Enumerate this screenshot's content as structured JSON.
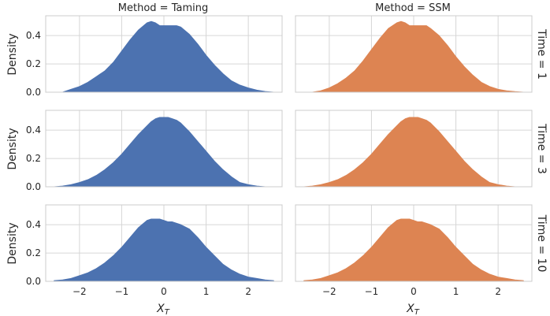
{
  "chart_data": {
    "type": "area",
    "subtype": "kde-facet-grid",
    "column_facet": "Method",
    "row_facet": "Time",
    "column_titles": [
      "Method = Taming",
      "Method = SSM"
    ],
    "row_titles": [
      "Time = 1",
      "Time = 3",
      "Time = 10"
    ],
    "ylabel": "Density",
    "xlabel": "X_T",
    "xticks": [
      -2,
      -1,
      0,
      1,
      2
    ],
    "xtick_labels": [
      "−2",
      "−1",
      "0",
      "1",
      "2"
    ],
    "yticks": [
      0.0,
      0.2,
      0.4
    ],
    "ytick_labels": [
      "0.0",
      "0.2",
      "0.4"
    ],
    "xlim": [
      -2.8,
      2.8
    ],
    "ylim": [
      0,
      0.54
    ],
    "grid": true,
    "colors": {
      "Taming": "#4c72b0",
      "SSM": "#dd8452"
    },
    "x": [
      -2.6,
      -2.4,
      -2.2,
      -2.0,
      -1.8,
      -1.6,
      -1.4,
      -1.2,
      -1.0,
      -0.8,
      -0.6,
      -0.4,
      -0.3,
      -0.2,
      -0.1,
      0.0,
      0.1,
      0.2,
      0.3,
      0.4,
      0.6,
      0.8,
      1.0,
      1.2,
      1.4,
      1.6,
      1.8,
      2.0,
      2.2,
      2.4,
      2.6
    ],
    "panels": [
      {
        "method": "Taming",
        "time": "1",
        "values": [
          0.0,
          0.0,
          0.02,
          0.04,
          0.07,
          0.11,
          0.15,
          0.21,
          0.29,
          0.37,
          0.44,
          0.49,
          0.5,
          0.49,
          0.47,
          0.47,
          0.47,
          0.47,
          0.47,
          0.46,
          0.41,
          0.34,
          0.26,
          0.19,
          0.13,
          0.08,
          0.05,
          0.03,
          0.015,
          0.005,
          0.0
        ]
      },
      {
        "method": "SSM",
        "time": "1",
        "values": [
          0.0,
          0.0,
          0.01,
          0.03,
          0.06,
          0.1,
          0.15,
          0.22,
          0.3,
          0.38,
          0.45,
          0.49,
          0.5,
          0.49,
          0.47,
          0.47,
          0.47,
          0.47,
          0.47,
          0.45,
          0.4,
          0.33,
          0.25,
          0.18,
          0.12,
          0.07,
          0.04,
          0.02,
          0.01,
          0.004,
          0.0
        ]
      },
      {
        "method": "Taming",
        "time": "3",
        "values": [
          0.0,
          0.005,
          0.015,
          0.03,
          0.05,
          0.08,
          0.12,
          0.17,
          0.23,
          0.3,
          0.37,
          0.43,
          0.46,
          0.48,
          0.49,
          0.49,
          0.49,
          0.48,
          0.47,
          0.45,
          0.39,
          0.32,
          0.25,
          0.18,
          0.12,
          0.07,
          0.03,
          0.015,
          0.005,
          0.0,
          0.0
        ]
      },
      {
        "method": "SSM",
        "time": "3",
        "values": [
          0.0,
          0.005,
          0.015,
          0.03,
          0.05,
          0.08,
          0.12,
          0.17,
          0.23,
          0.3,
          0.37,
          0.43,
          0.46,
          0.48,
          0.49,
          0.49,
          0.49,
          0.48,
          0.47,
          0.45,
          0.39,
          0.32,
          0.25,
          0.18,
          0.12,
          0.07,
          0.03,
          0.015,
          0.005,
          0.0,
          0.0
        ]
      },
      {
        "method": "Taming",
        "time": "10",
        "values": [
          0.005,
          0.01,
          0.02,
          0.04,
          0.06,
          0.09,
          0.13,
          0.18,
          0.24,
          0.31,
          0.38,
          0.43,
          0.44,
          0.44,
          0.44,
          0.43,
          0.42,
          0.42,
          0.41,
          0.4,
          0.37,
          0.31,
          0.24,
          0.18,
          0.12,
          0.08,
          0.05,
          0.03,
          0.02,
          0.01,
          0.005
        ]
      },
      {
        "method": "SSM",
        "time": "10",
        "values": [
          0.005,
          0.01,
          0.02,
          0.04,
          0.06,
          0.09,
          0.13,
          0.18,
          0.24,
          0.31,
          0.38,
          0.43,
          0.44,
          0.44,
          0.44,
          0.43,
          0.42,
          0.42,
          0.41,
          0.4,
          0.37,
          0.31,
          0.24,
          0.18,
          0.12,
          0.08,
          0.05,
          0.03,
          0.02,
          0.01,
          0.005
        ]
      }
    ]
  }
}
